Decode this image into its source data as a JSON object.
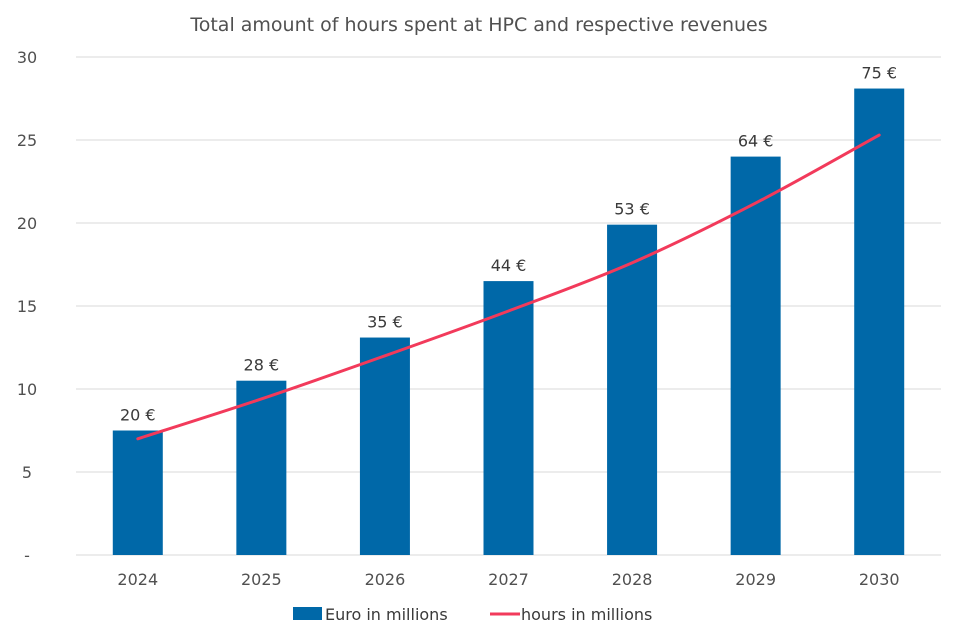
{
  "chart_data": {
    "type": "bar",
    "title": "Total amount of hours spent at HPC and respective revenues",
    "xlabel": "",
    "ylabel": "",
    "ylim": [
      0,
      30
    ],
    "y_ticks": [
      {
        "value": 0,
        "label": "-"
      },
      {
        "value": 5,
        "label": "5"
      },
      {
        "value": 10,
        "label": "10"
      },
      {
        "value": 15,
        "label": "15"
      },
      {
        "value": 20,
        "label": "20"
      },
      {
        "value": 25,
        "label": "25"
      },
      {
        "value": 30,
        "label": "30"
      }
    ],
    "grid": true,
    "legend_position": "bottom",
    "categories": [
      "2024",
      "2025",
      "2026",
      "2027",
      "2028",
      "2029",
      "2030"
    ],
    "series": [
      {
        "name": "Euro in millions",
        "kind": "bar",
        "color": "#0068a8",
        "values": [
          7.5,
          10.5,
          13.1,
          16.5,
          19.9,
          24.0,
          28.1
        ],
        "data_labels": [
          "20 €",
          "28 €",
          "35 €",
          "44 €",
          "53 €",
          "64 €",
          "75 €"
        ]
      },
      {
        "name": "hours in millions",
        "kind": "line",
        "color": "#f23a5b",
        "values": [
          7.0,
          9.4,
          12.0,
          14.7,
          17.6,
          21.2,
          25.3
        ]
      }
    ]
  }
}
